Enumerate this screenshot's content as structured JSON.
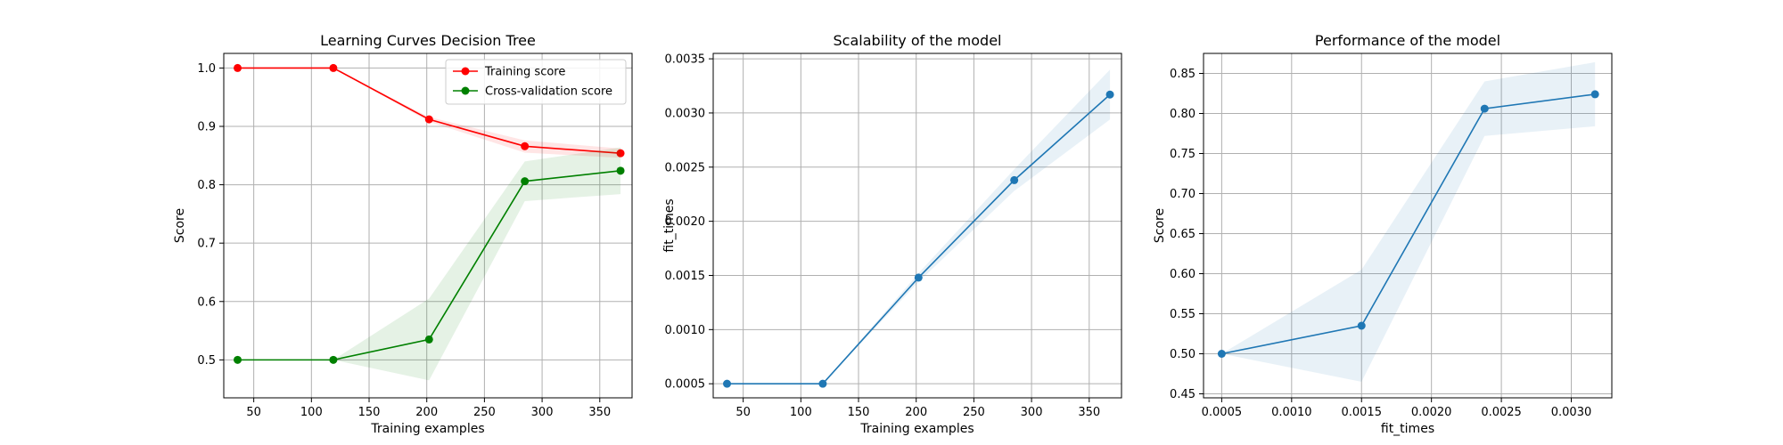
{
  "chart_data": [
    {
      "type": "line",
      "title": "Learning Curves Decision Tree",
      "xlabel": "Training examples",
      "ylabel": "Score",
      "xlim": [
        24,
        378
      ],
      "ylim": [
        0.435,
        1.025
      ],
      "xticks": [
        50,
        100,
        150,
        200,
        250,
        300,
        350
      ],
      "yticks": [
        0.5,
        0.6,
        0.7,
        0.8,
        0.9,
        1.0
      ],
      "ytick_labels": [
        "0.5",
        "0.6",
        "0.7",
        "0.8",
        "0.9",
        "1.0"
      ],
      "grid": true,
      "legend": "top-right",
      "x": [
        36,
        119,
        202,
        285,
        368
      ],
      "series": [
        {
          "name": "Training score",
          "color": "#ff0000",
          "values": [
            1.0,
            1.0,
            0.912,
            0.866,
            0.854
          ],
          "lower": [
            1.0,
            1.0,
            0.908,
            0.855,
            0.846
          ],
          "upper": [
            1.0,
            1.0,
            0.916,
            0.876,
            0.862
          ]
        },
        {
          "name": "Cross-validation score",
          "color": "#008000",
          "values": [
            0.5,
            0.5,
            0.535,
            0.806,
            0.824
          ],
          "lower": [
            0.5,
            0.5,
            0.465,
            0.772,
            0.784
          ],
          "upper": [
            0.5,
            0.5,
            0.605,
            0.84,
            0.864
          ]
        }
      ]
    },
    {
      "type": "line",
      "title": "Scalability of the model",
      "xlabel": "Training examples",
      "ylabel": "fit_times",
      "xlim": [
        24,
        378
      ],
      "ylim": [
        0.00037,
        0.00355
      ],
      "xticks": [
        50,
        100,
        150,
        200,
        250,
        300,
        350
      ],
      "yticks": [
        0.0005,
        0.001,
        0.0015,
        0.002,
        0.0025,
        0.003,
        0.0035
      ],
      "ytick_labels": [
        "0.0005",
        "0.0010",
        "0.0015",
        "0.0020",
        "0.0025",
        "0.0030",
        "0.0035"
      ],
      "grid": true,
      "x": [
        36,
        119,
        202,
        285,
        368
      ],
      "series": [
        {
          "color": "#1f77b4",
          "values": [
            0.0005,
            0.0005,
            0.00148,
            0.00238,
            0.00317
          ],
          "lower": [
            0.0005,
            0.0005,
            0.00144,
            0.00228,
            0.00294
          ],
          "upper": [
            0.0005,
            0.0005,
            0.00152,
            0.00248,
            0.0034
          ]
        }
      ]
    },
    {
      "type": "line",
      "title": "Performance of the model",
      "xlabel": "fit_times",
      "ylabel": "Score",
      "xlim": [
        0.00037,
        0.00329
      ],
      "ylim": [
        0.445,
        0.875
      ],
      "xticks": [
        0.0005,
        0.001,
        0.0015,
        0.002,
        0.0025,
        0.003
      ],
      "xtick_labels": [
        "0.0005",
        "0.0010",
        "0.0015",
        "0.0020",
        "0.0025",
        "0.0030"
      ],
      "yticks": [
        0.45,
        0.5,
        0.55,
        0.6,
        0.65,
        0.7,
        0.75,
        0.8,
        0.85
      ],
      "ytick_labels": [
        "0.45",
        "0.50",
        "0.55",
        "0.60",
        "0.65",
        "0.70",
        "0.75",
        "0.80",
        "0.85"
      ],
      "grid": true,
      "x": [
        0.0005,
        0.0015,
        0.00238,
        0.00317
      ],
      "series": [
        {
          "color": "#1f77b4",
          "values": [
            0.5,
            0.535,
            0.806,
            0.824
          ],
          "lower": [
            0.5,
            0.465,
            0.772,
            0.784
          ],
          "upper": [
            0.5,
            0.605,
            0.84,
            0.864
          ]
        }
      ]
    }
  ]
}
